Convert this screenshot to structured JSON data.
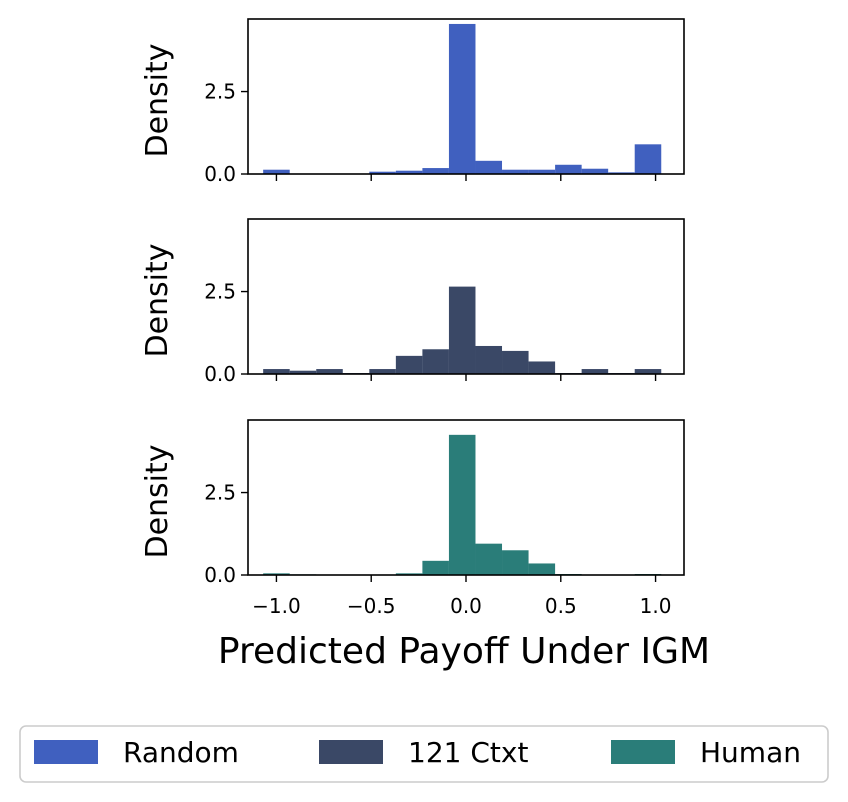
{
  "chart_data": {
    "type": "bar",
    "subtype": "histogram-stacked-panels",
    "xlabel": "Predicted Payoff Under IGM",
    "ylabel": "Density",
    "xlim": [
      -1.15,
      1.15
    ],
    "ylim": [
      0,
      4.7
    ],
    "xticks": [
      -1.0,
      -0.5,
      0.0,
      0.5,
      1.0
    ],
    "xtick_labels": [
      "−1.0",
      "−0.5",
      "0.0",
      "0.5",
      "1.0"
    ],
    "yticks": [
      0.0,
      2.5
    ],
    "ytick_labels": [
      "0.0",
      "2.5"
    ],
    "bin_edges": [
      -1.1,
      -0.96,
      -0.82,
      -0.68,
      -0.54,
      -0.4,
      -0.26,
      -0.12,
      0.02,
      0.16,
      0.3,
      0.44,
      0.58,
      0.72,
      0.86,
      1.0
    ],
    "bin_edges_note": "",
    "grid": false,
    "legend_position": "bottom",
    "series": [
      {
        "name": "Random",
        "color": "#4060bf",
        "bins": [
          {
            "x0": -1.07,
            "x1": -0.93,
            "value": 0.13
          },
          {
            "x0": -0.93,
            "x1": -0.79,
            "value": 0.0
          },
          {
            "x0": -0.79,
            "x1": -0.65,
            "value": 0.0
          },
          {
            "x0": -0.65,
            "x1": -0.51,
            "value": 0.0
          },
          {
            "x0": -0.51,
            "x1": -0.37,
            "value": 0.07
          },
          {
            "x0": -0.37,
            "x1": -0.23,
            "value": 0.1
          },
          {
            "x0": -0.23,
            "x1": -0.09,
            "value": 0.18
          },
          {
            "x0": -0.09,
            "x1": 0.05,
            "value": 4.55
          },
          {
            "x0": 0.05,
            "x1": 0.19,
            "value": 0.4
          },
          {
            "x0": 0.19,
            "x1": 0.33,
            "value": 0.13
          },
          {
            "x0": 0.33,
            "x1": 0.47,
            "value": 0.13
          },
          {
            "x0": 0.47,
            "x1": 0.61,
            "value": 0.28
          },
          {
            "x0": 0.61,
            "x1": 0.75,
            "value": 0.16
          },
          {
            "x0": 0.75,
            "x1": 0.89,
            "value": 0.05
          },
          {
            "x0": 0.89,
            "x1": 1.03,
            "value": 0.9
          }
        ]
      },
      {
        "name": "121 Ctxt",
        "color": "#3a4866",
        "bins": [
          {
            "x0": -1.07,
            "x1": -0.93,
            "value": 0.15
          },
          {
            "x0": -0.93,
            "x1": -0.79,
            "value": 0.1
          },
          {
            "x0": -0.79,
            "x1": -0.65,
            "value": 0.15
          },
          {
            "x0": -0.65,
            "x1": -0.51,
            "value": 0.03
          },
          {
            "x0": -0.51,
            "x1": -0.37,
            "value": 0.15
          },
          {
            "x0": -0.37,
            "x1": -0.23,
            "value": 0.55
          },
          {
            "x0": -0.23,
            "x1": -0.09,
            "value": 0.75
          },
          {
            "x0": -0.09,
            "x1": 0.05,
            "value": 2.65
          },
          {
            "x0": 0.05,
            "x1": 0.19,
            "value": 0.85
          },
          {
            "x0": 0.19,
            "x1": 0.33,
            "value": 0.7
          },
          {
            "x0": 0.33,
            "x1": 0.47,
            "value": 0.38
          },
          {
            "x0": 0.47,
            "x1": 0.61,
            "value": 0.03
          },
          {
            "x0": 0.61,
            "x1": 0.75,
            "value": 0.15
          },
          {
            "x0": 0.75,
            "x1": 0.89,
            "value": 0.03
          },
          {
            "x0": 0.89,
            "x1": 1.03,
            "value": 0.15
          }
        ]
      },
      {
        "name": "Human",
        "color": "#2a7d79",
        "bins": [
          {
            "x0": -1.07,
            "x1": -0.93,
            "value": 0.05
          },
          {
            "x0": -0.93,
            "x1": -0.79,
            "value": 0.02
          },
          {
            "x0": -0.79,
            "x1": -0.65,
            "value": 0.0
          },
          {
            "x0": -0.65,
            "x1": -0.51,
            "value": 0.0
          },
          {
            "x0": -0.51,
            "x1": -0.37,
            "value": 0.0
          },
          {
            "x0": -0.37,
            "x1": -0.23,
            "value": 0.05
          },
          {
            "x0": -0.23,
            "x1": -0.09,
            "value": 0.43
          },
          {
            "x0": -0.09,
            "x1": 0.05,
            "value": 4.25
          },
          {
            "x0": 0.05,
            "x1": 0.19,
            "value": 0.95
          },
          {
            "x0": 0.19,
            "x1": 0.33,
            "value": 0.75
          },
          {
            "x0": 0.33,
            "x1": 0.47,
            "value": 0.35
          },
          {
            "x0": 0.47,
            "x1": 0.61,
            "value": 0.03
          },
          {
            "x0": 0.61,
            "x1": 0.75,
            "value": 0.0
          },
          {
            "x0": 0.75,
            "x1": 0.89,
            "value": 0.0
          },
          {
            "x0": 0.89,
            "x1": 1.03,
            "value": 0.03
          }
        ]
      }
    ]
  }
}
